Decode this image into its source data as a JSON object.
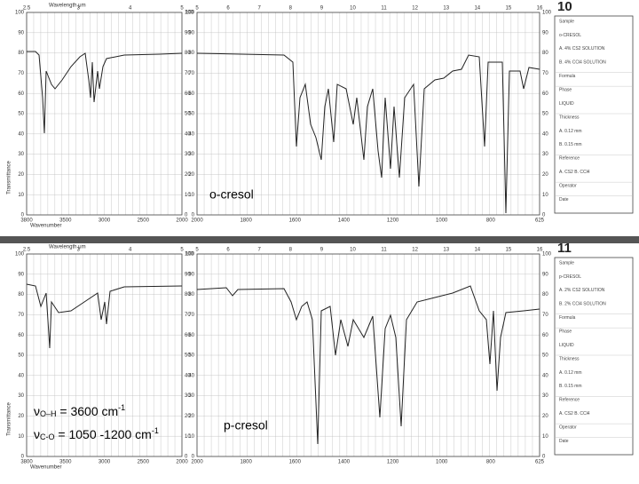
{
  "axis_titles": {
    "wavelength": "Wavelength μm",
    "wavenumber": "Wavenumber",
    "transmittance": "Transmittance"
  },
  "yticks": [
    "0",
    "10",
    "20",
    "30",
    "40",
    "50",
    "60",
    "70",
    "80",
    "90",
    "100"
  ],
  "wavelengths_left": [
    "2.5",
    "3",
    "4",
    "5"
  ],
  "wavelengths_right": [
    "5",
    "6",
    "7",
    "8",
    "9",
    "10",
    "11",
    "12",
    "13",
    "14",
    "15",
    "16"
  ],
  "wavenumbers_left": [
    "3800",
    "3500",
    "3000",
    "2500",
    "2000"
  ],
  "wavenumbers_right": [
    "2000",
    "1800",
    "1600",
    "1400",
    "1200",
    "1000",
    "800",
    "625"
  ],
  "panels": [
    {
      "number": "10",
      "compound": "o-cresol",
      "sidebar": [
        "Sample",
        "o-CRESOL",
        "A. 4% CS2 SOLUTION",
        "B. 4% CCl4 SOLUTION",
        "Formula",
        "Phase",
        "LIQUID",
        "Thickness",
        "A. 0.12 mm",
        "B. 0.15 mm",
        "Reference",
        "A. CS2   B. CCl4",
        "Operator",
        "Date"
      ]
    },
    {
      "number": "11",
      "compound": "p-cresol",
      "sidebar": [
        "Sample",
        "p-CRESOL",
        "A. 2% CS2 SOLUTION",
        "B. 2% CCl4 SOLUTION",
        "Formula",
        "Phase",
        "LIQUID",
        "Thickness",
        "A. 0.12 mm",
        "B. 0.15 mm",
        "Reference",
        "A. CS2   B. CCl4",
        "Operator",
        "Date"
      ],
      "annotations": [
        {
          "symbol": "ν",
          "subscript": "O–H",
          "text": " = 3600 cm",
          "superscript": "-1"
        },
        {
          "symbol": "ν",
          "subscript": "C-O",
          "text": " = 1050 -1200 cm",
          "superscript": "-1"
        }
      ]
    }
  ]
}
